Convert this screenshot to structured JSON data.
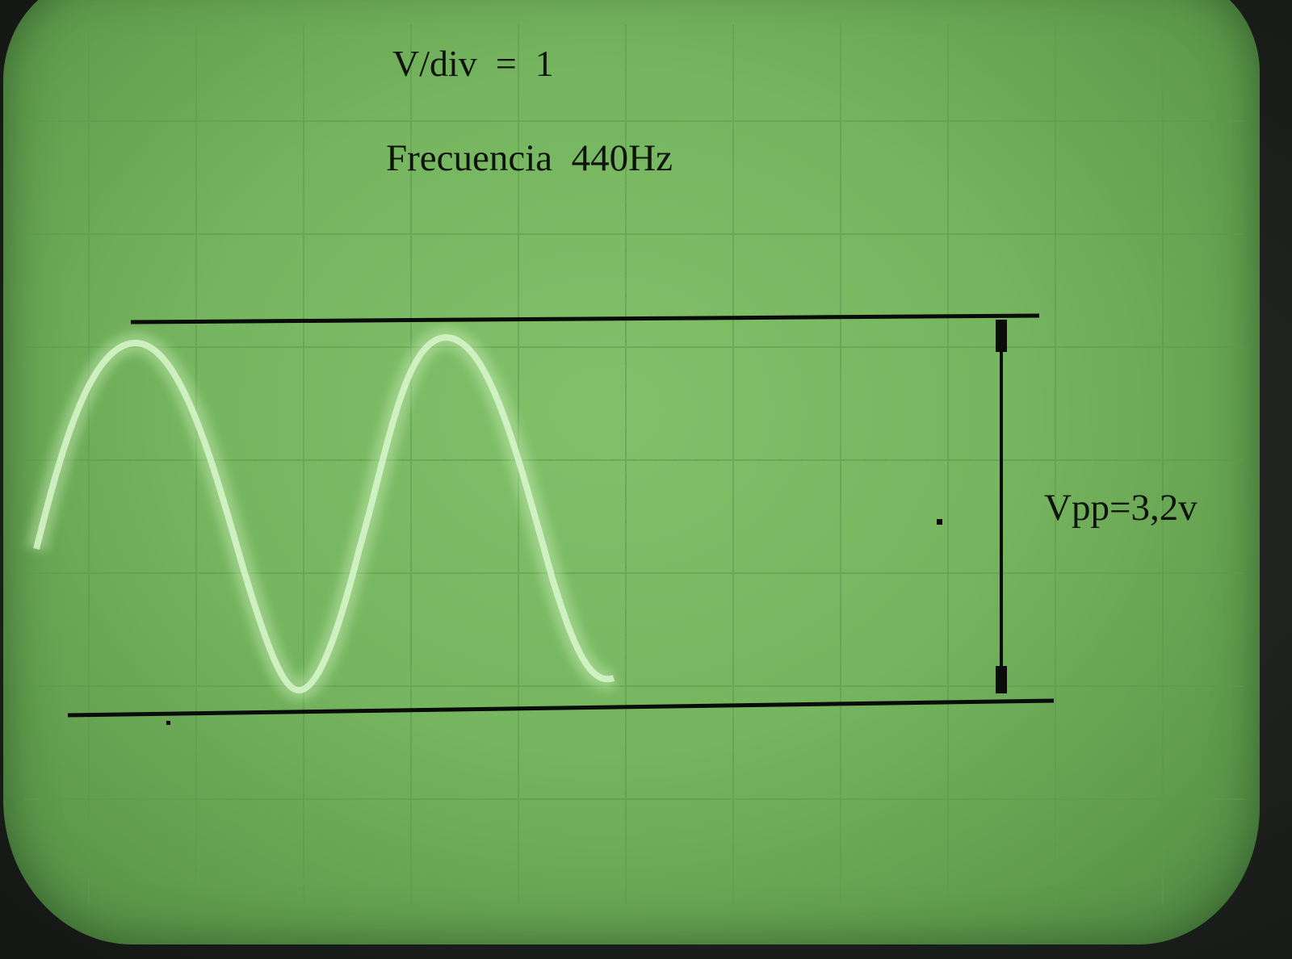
{
  "annotations": {
    "volts_per_div": "V/div  =  1",
    "frequency": "Frecuencia  440Hz",
    "vpp": "Vpp=3,2v"
  },
  "colors": {
    "screen": "#76b55f",
    "trace": "#d6f5c8",
    "grid": "#5e9a4d",
    "ink": "#0e140c"
  }
}
